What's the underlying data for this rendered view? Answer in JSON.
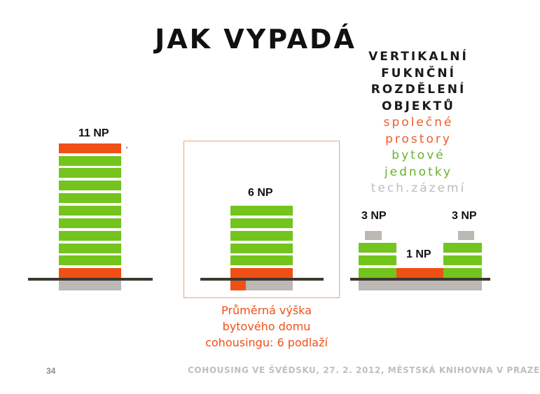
{
  "title": "JAK VYPADÁ",
  "legend": {
    "heading": [
      "VERTIKALNÍ",
      "FUKNČNÍ",
      "ROZDĚLENÍ",
      "OBJEKTŮ"
    ],
    "shared": [
      "společné",
      "prostory"
    ],
    "units": [
      "bytové",
      "jednotky"
    ],
    "technical": "tech.zázemí"
  },
  "buildings": {
    "tall": {
      "label": "11 NP",
      "floors": 11
    },
    "medium": {
      "label": "6 NP",
      "floors": 6
    },
    "low_left": {
      "label": "3 NP",
      "floors": 3
    },
    "low_middle": {
      "label": "1 NP",
      "floors": 1
    },
    "low_right": {
      "label": "3 NP",
      "floors": 3
    }
  },
  "caption": [
    "Průměrná výška",
    "bytového domu",
    "cohousingu: 6 podlaží"
  ],
  "footer": {
    "page_number": "34",
    "text": "COHOUSING VE ŠVÉDSKU, 27. 2. 2012, MĚSTSKÁ KNIHOVNA V PRAZE"
  },
  "colors": {
    "shared_spaces": "#f04f16",
    "residential_units": "#73c41d",
    "technical_facilities": "#bcb8b4",
    "ground_line": "#3d3830"
  }
}
